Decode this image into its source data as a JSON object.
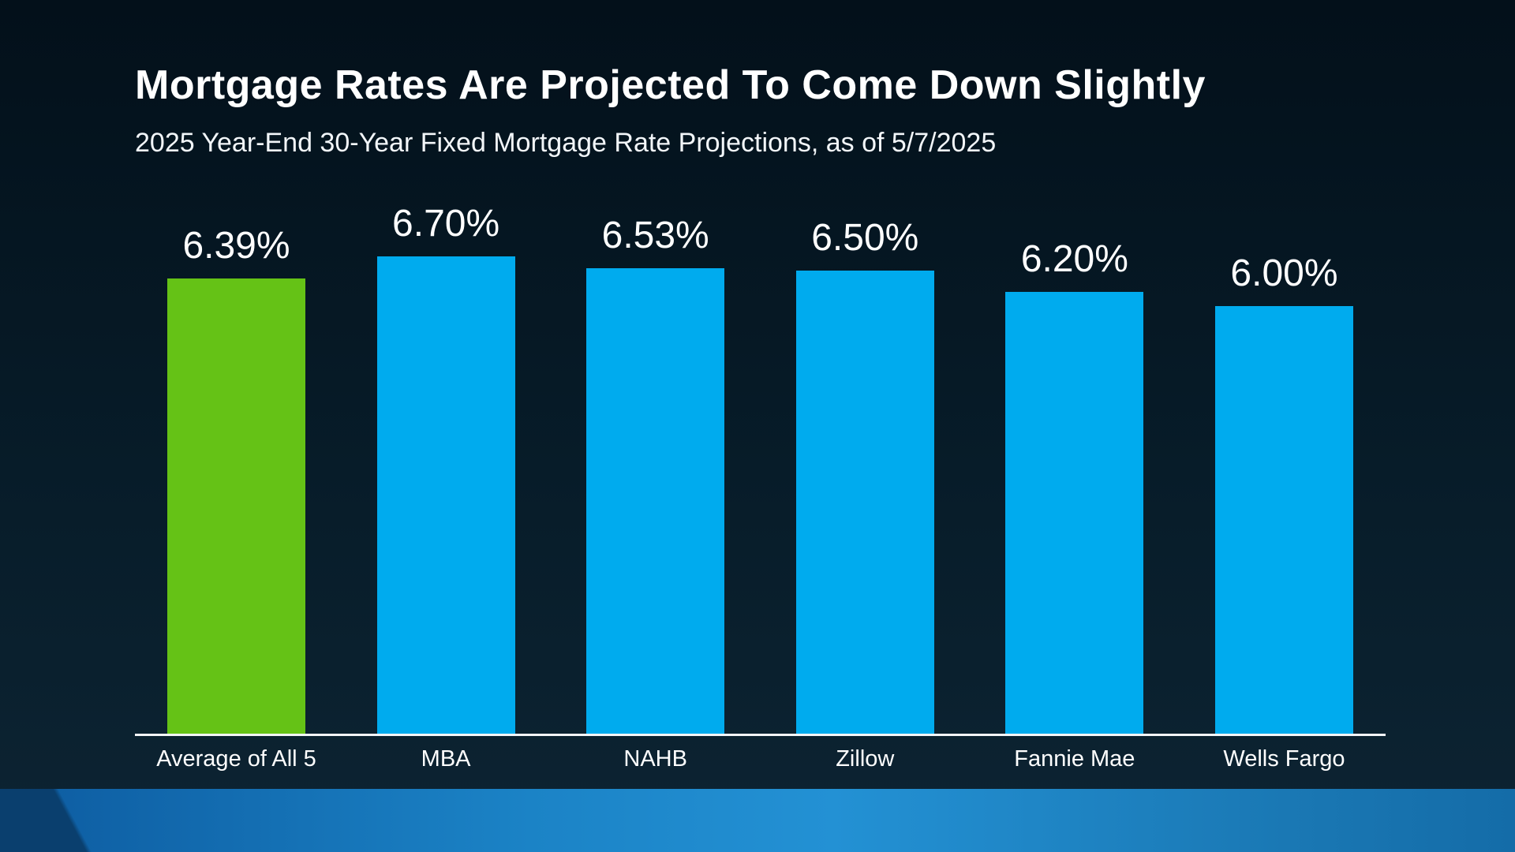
{
  "header": {
    "title": "Mortgage Rates Are Projected To Come Down Slightly",
    "subtitle": "2025 Year-End 30-Year Fixed Mortgage Rate Projections, as of 5/7/2025"
  },
  "chart_data": {
    "type": "bar",
    "title": "Mortgage Rates Are Projected To Come Down Slightly",
    "subtitle": "2025 Year-End 30-Year Fixed Mortgage Rate Projections, as of 5/7/2025",
    "categories": [
      "Average of All 5",
      "MBA",
      "NAHB",
      "Zillow",
      "Fannie Mae",
      "Wells Fargo"
    ],
    "values": [
      6.39,
      6.7,
      6.53,
      6.5,
      6.2,
      6.0
    ],
    "value_labels": [
      "6.39%",
      "6.70%",
      "6.53%",
      "6.50%",
      "6.20%",
      "6.00%"
    ],
    "bar_colors": [
      "#65c216",
      "#00abee",
      "#00abee",
      "#00abee",
      "#00abee",
      "#00abee"
    ],
    "highlight_color": "#65c216",
    "default_color": "#00abee",
    "xlabel": "",
    "ylabel": "",
    "ylim": [
      0,
      7
    ],
    "grid": false,
    "legend": "none",
    "axis_line_color": "#f2f6f9"
  },
  "colors": {
    "background_top": "#03101a",
    "background_bottom": "#0d2433",
    "footer_gradient_left": "#0d5ba0",
    "footer_gradient_mid": "#2391d4",
    "footer_gradient_right": "#146ca8"
  }
}
